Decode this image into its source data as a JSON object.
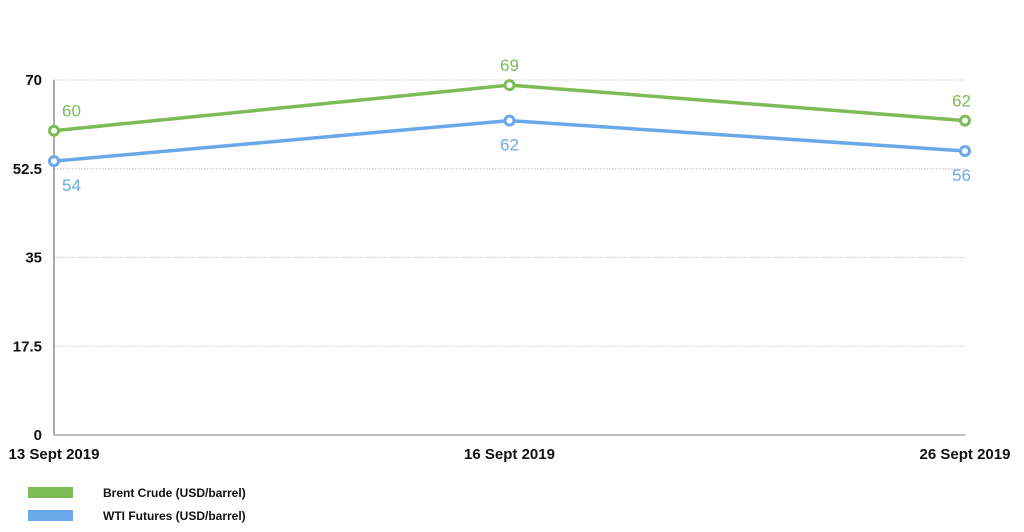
{
  "chart_data": {
    "type": "line",
    "title": "",
    "xlabel": "",
    "ylabel": "",
    "categories": [
      "13 Sept 2019",
      "16 Sept 2019",
      "26 Sept 2019"
    ],
    "series": [
      {
        "name": "Brent Crude (USD/barrel)",
        "values": [
          60,
          69,
          62
        ],
        "color": "#7cbb55"
      },
      {
        "name": "WTI Futures (USD/barrel)",
        "values": [
          54,
          62,
          56
        ],
        "color": "#6aa8ea"
      }
    ],
    "ylim": [
      0,
      70
    ],
    "yticks": [
      "0",
      "17.5",
      "35",
      "52.5",
      "70"
    ],
    "grid": true,
    "legend_position": "bottom-left"
  }
}
